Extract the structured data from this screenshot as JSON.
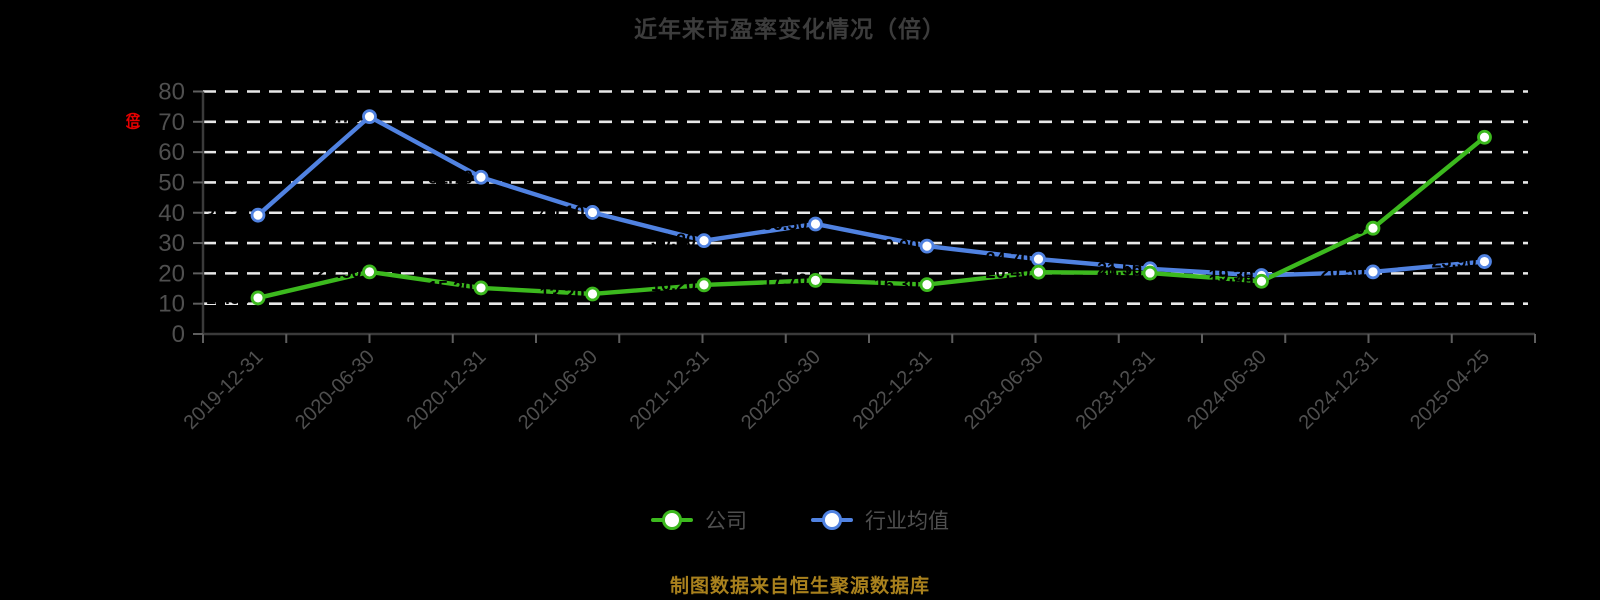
{
  "page": {
    "background": "#000000"
  },
  "header": {
    "title": "近年来市盈率变化情况（倍）"
  },
  "y_axis": {
    "unit_label": "（倍）",
    "unit_color": "#E60000"
  },
  "legend": {
    "items": [
      {
        "label": "公司",
        "color": "#3CB91E"
      },
      {
        "label": "行业均值",
        "color": "#5082E1"
      }
    ]
  },
  "footer": {
    "text": "制图数据来自恒生聚源数据库",
    "color": "#A9811D"
  },
  "chart_data": {
    "type": "line",
    "title": "近年来市盈率变化情况（倍）",
    "categories": [
      "2019-12-31",
      "2020-06-30",
      "2020-12-31",
      "2021-06-30",
      "2021-12-31",
      "2022-06-30",
      "2022-12-31",
      "2023-06-30",
      "2023-12-31",
      "2024-06-30",
      "2024-12-31",
      "2025-04-25"
    ],
    "series": [
      {
        "name": "公司",
        "color": "#3CB91E",
        "values": [
          11.9,
          20.5,
          15.2,
          13.2,
          16.2,
          17.7,
          16.3,
          20.4,
          20.1,
          17.4,
          34.9,
          64.9
        ]
      },
      {
        "name": "行业均值",
        "color": "#5082E1",
        "values": [
          39.2,
          71.7,
          51.7,
          40.1,
          30.8,
          36.3,
          29.0,
          24.7,
          21.5,
          19.3,
          20.5,
          23.9
        ]
      }
    ],
    "ylim": [
      0,
      80
    ],
    "yticks": [
      0,
      10,
      20,
      30,
      40,
      50,
      60,
      70,
      80
    ],
    "grid": "horizontal-dashed",
    "grid_color": "#E8E8E8",
    "axis_color": "#3A3A3A",
    "tick_color": "#5E5E5E",
    "tick_label_color": "#4F4F4F",
    "point_label_color": "#000000",
    "marker_fill": "#FFFFFF",
    "legend_position": "bottom",
    "xlabel": "",
    "ylabel": "（倍）"
  }
}
